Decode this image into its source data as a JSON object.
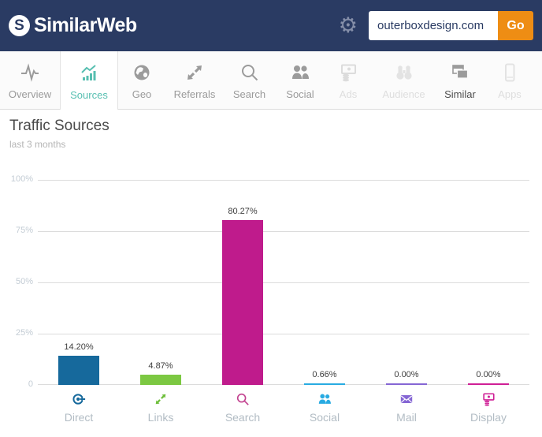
{
  "header": {
    "logo_mark": "S",
    "brand": "SimilarWeb",
    "settings_icon": "⚙",
    "search": {
      "value": "outerboxdesign.com",
      "go_label": "Go"
    },
    "colors": {
      "topbar": "#2a3b63",
      "accent_orange": "#ee8d14"
    }
  },
  "nav": {
    "active_color": "#57bfb1",
    "tabs": [
      {
        "label": "Overview",
        "state": "normal"
      },
      {
        "label": "Sources",
        "state": "active"
      },
      {
        "label": "Geo",
        "state": "normal"
      },
      {
        "label": "Referrals",
        "state": "normal"
      },
      {
        "label": "Search",
        "state": "normal"
      },
      {
        "label": "Social",
        "state": "normal"
      },
      {
        "label": "Ads",
        "state": "disabled"
      },
      {
        "label": "Audience",
        "state": "disabled"
      },
      {
        "label": "Similar",
        "state": "emphasis"
      },
      {
        "label": "Apps",
        "state": "disabled"
      }
    ]
  },
  "page": {
    "title": "Traffic Sources",
    "subtitle": "last 3 months"
  },
  "chart_data": {
    "type": "bar",
    "title": "Traffic Sources",
    "subtitle": "last 3 months",
    "categories": [
      "Direct",
      "Links",
      "Search",
      "Social",
      "Mail",
      "Display"
    ],
    "values": [
      14.2,
      4.87,
      80.27,
      0.66,
      0.0,
      0.0
    ],
    "value_labels": [
      "14.20%",
      "4.87%",
      "80.27%",
      "0.66%",
      "0.00%",
      "0.00%"
    ],
    "colors": [
      "#16699c",
      "#7cc842",
      "#bf1b8c",
      "#29abe2",
      "#8566d4",
      "#cf1f96"
    ],
    "ylim": [
      0,
      100
    ],
    "ytick_labels": [
      "100%",
      "75%",
      "50%",
      "25%",
      "0"
    ],
    "grid": true,
    "legend": "none",
    "xlabel": "",
    "ylabel": ""
  }
}
